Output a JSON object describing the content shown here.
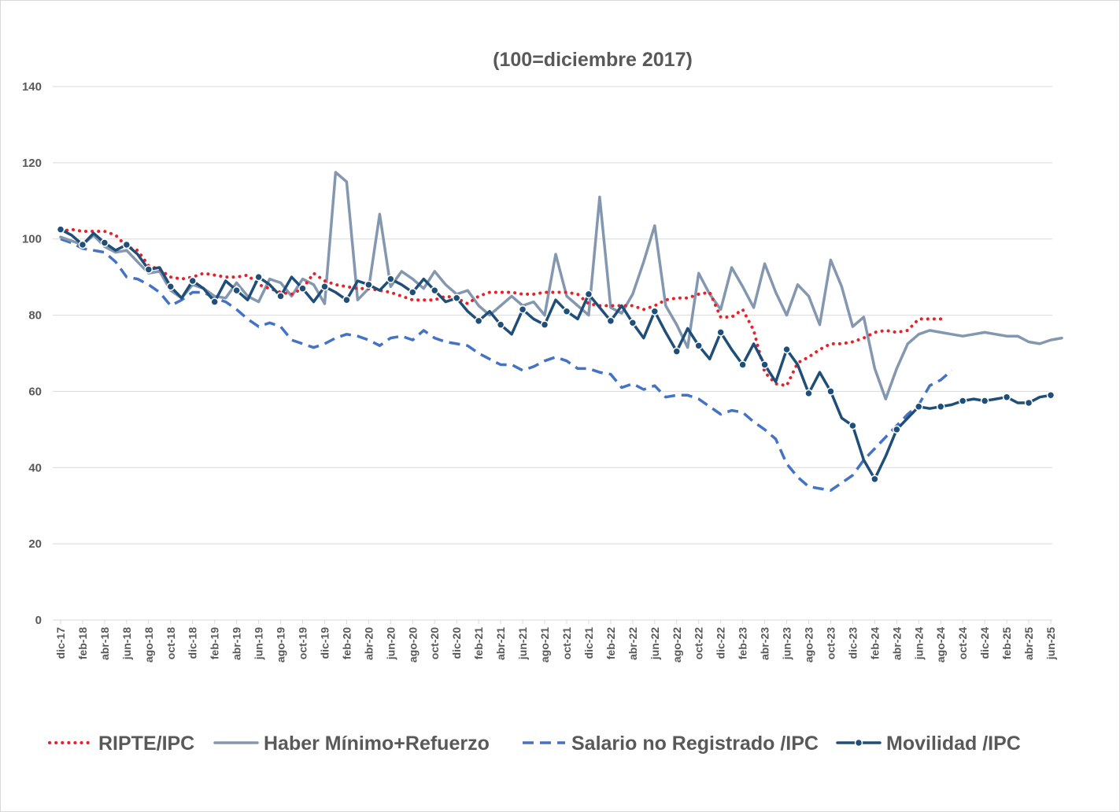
{
  "chart_data": {
    "type": "line",
    "title": "(100=diciembre 2017)",
    "ylim": [
      0,
      140
    ],
    "yticks": [
      0,
      20,
      40,
      60,
      80,
      100,
      120,
      140
    ],
    "grid": true,
    "legend_position": "bottom",
    "x_tick_labels": [
      "dic-17",
      "feb-18",
      "abr-18",
      "jun-18",
      "ago-18",
      "oct-18",
      "dic-18",
      "feb-19",
      "abr-19",
      "jun-19",
      "ago-19",
      "oct-19",
      "dic-19",
      "feb-20",
      "abr-20",
      "jun-20",
      "ago-20",
      "oct-20",
      "dic-20",
      "feb-21",
      "abr-21",
      "jun-21",
      "ago-21",
      "oct-21",
      "dic-21",
      "feb-22",
      "abr-22",
      "jun-22",
      "ago-22",
      "oct-22",
      "dic-22",
      "feb-23",
      "abr-23",
      "jun-23",
      "ago-23",
      "oct-23",
      "dic-23",
      "feb-24",
      "abr-24",
      "jun-24",
      "ago-24",
      "oct-24",
      "dic-24",
      "feb-25",
      "abr-25",
      "jun-25"
    ],
    "x_start": "dic-17",
    "series": [
      {
        "name": "RIPTE/IPC",
        "color": "#e8202a",
        "style": "dotted",
        "values": [
          102,
          102.5,
          102,
          102,
          102,
          101,
          98,
          97,
          93,
          92,
          90,
          89.5,
          90,
          91,
          90.5,
          90,
          90,
          90.5,
          88,
          87,
          86,
          85.5,
          87,
          91,
          89,
          88,
          87.5,
          87,
          87,
          86.5,
          86,
          85,
          84,
          84,
          84,
          85,
          84.5,
          83,
          85,
          86,
          86,
          86,
          85.5,
          85.5,
          86,
          86,
          86,
          85.5,
          83,
          82.5,
          82.5,
          82.5,
          82.5,
          81.5,
          82.5,
          84,
          84.5,
          84.5,
          85.5,
          86,
          79.5,
          79.5,
          81.5,
          76,
          65,
          62,
          61.5,
          67.5,
          69,
          71,
          72.5,
          72.5,
          73,
          74,
          75.5,
          76,
          75.5,
          76,
          79,
          79,
          79
        ]
      },
      {
        "name": "Haber Mínimo+Refuerzo",
        "color": "#8497b0",
        "style": "solid",
        "values": [
          100.5,
          99.5,
          98.5,
          101,
          98,
          96.5,
          97,
          94,
          91,
          91.5,
          86.5,
          84.5,
          88,
          87,
          85,
          84.5,
          88.5,
          85,
          83.5,
          89.5,
          88.5,
          85,
          89.5,
          88,
          83,
          117.5,
          115,
          84,
          87,
          106.5,
          87.5,
          91.5,
          89.5,
          87,
          91.5,
          88,
          85.5,
          86.5,
          82.5,
          80,
          82.5,
          85,
          82.5,
          83.5,
          80,
          96,
          85,
          82.5,
          80,
          111,
          82,
          80.5,
          85.5,
          94,
          103.5,
          82.5,
          77.5,
          71.5,
          91,
          85.5,
          81.5,
          92.5,
          87.5,
          82,
          93.5,
          86,
          80,
          88,
          85,
          77.5,
          94.5,
          87.5,
          77,
          79.5,
          66,
          58,
          66,
          72.5,
          75,
          76,
          75.5,
          75,
          74.5,
          75,
          75.5,
          75,
          74.5,
          74.5,
          73,
          72.5,
          73.5,
          74
        ]
      },
      {
        "name": "Salario no Registrado /IPC",
        "color": "#4472c4",
        "style": "dashed",
        "values": [
          100,
          99,
          97.5,
          97,
          96.5,
          94,
          90,
          89.5,
          88,
          86,
          82.5,
          84,
          86,
          86,
          84.5,
          83.5,
          81.5,
          79,
          77,
          78,
          77,
          73.5,
          72.5,
          71.5,
          72.5,
          74,
          75,
          74.5,
          73.5,
          72,
          74,
          74.5,
          73.5,
          76,
          74,
          73,
          72.5,
          72,
          70,
          68.5,
          67,
          67,
          65.5,
          66.5,
          68,
          69,
          68,
          66,
          66,
          65,
          64.5,
          61,
          62,
          60.5,
          61.5,
          58.5,
          59,
          59,
          58,
          56,
          54,
          55,
          54.5,
          52,
          50,
          47.5,
          41,
          37.5,
          35,
          34.5,
          34,
          36,
          38,
          42,
          45,
          48,
          51,
          54,
          56.5,
          61.5,
          63,
          65.5
        ]
      },
      {
        "name": "Movilidad /IPC",
        "color": "#1f4e79",
        "style": "solid-markers",
        "values": [
          102.5,
          101,
          98.5,
          101.5,
          99,
          97,
          98.5,
          96,
          92,
          92.5,
          87.5,
          84.5,
          89,
          87,
          83.5,
          89,
          86.5,
          84,
          90,
          88,
          85,
          90,
          87,
          83.5,
          87.5,
          86,
          84,
          89,
          88,
          86.5,
          89.5,
          88,
          86,
          89.5,
          86.5,
          83.5,
          84.5,
          81,
          78.5,
          81,
          77.5,
          75,
          81.5,
          79,
          77.5,
          84,
          81,
          79,
          85.5,
          82,
          78.5,
          82.5,
          78,
          74,
          81,
          75.5,
          70.5,
          76.5,
          72,
          68.5,
          75.5,
          71,
          67,
          72.5,
          67,
          62.5,
          71,
          67,
          59.5,
          65,
          60,
          53,
          51,
          42,
          37,
          43,
          50,
          53,
          56,
          55.5,
          56,
          56.5,
          57.5,
          58,
          57.5,
          58,
          58.5,
          57,
          57,
          58.5,
          59
        ]
      }
    ]
  }
}
